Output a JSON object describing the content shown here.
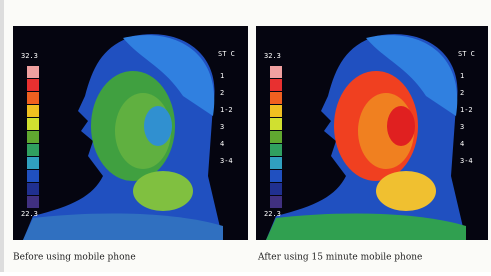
{
  "panels": [
    {
      "scale_max": "32.3",
      "scale_min": "22.3",
      "legend_title": "ST C",
      "legend_items": [
        "1",
        "2",
        "1-2",
        "3",
        "4",
        "3-4"
      ],
      "caption": "Before using mobile phone"
    },
    {
      "scale_max": "32.3",
      "scale_min": "22.3",
      "legend_title": "ST C",
      "legend_items": [
        "1",
        "2",
        "1-2",
        "3",
        "4",
        "3-4"
      ],
      "caption": "After using 15 minute mobile phone"
    }
  ]
}
